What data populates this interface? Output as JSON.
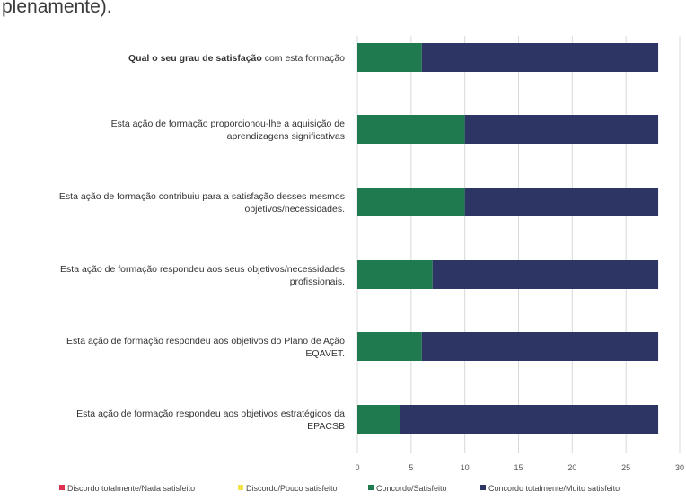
{
  "header": {
    "heading_fragment": "plenamente)."
  },
  "colors": {
    "discordo_totalmente": "#e0304f",
    "discordo": "#f2e34b",
    "concordo": "#1f7a4f",
    "concordo_totalmente": "#2c3564",
    "grid": "#d9d9d9"
  },
  "chart_data": {
    "type": "bar",
    "orientation": "horizontal",
    "stacked": true,
    "categories": [
      [
        "Qual o seu grau de satisfação com esta formação"
      ],
      [
        "Esta ação de formação proporcionou-lhe a aquisição de",
        "aprendizagens significativas"
      ],
      [
        "Esta ação de formação contribuiu para a satisfação desses mesmos",
        "objetivos/necessidades."
      ],
      [
        "Esta ação de formação respondeu aos seus objetivos/necessidades",
        "profissionais."
      ],
      [
        "Esta ação de formação respondeu aos objetivos do Plano de Ação",
        "EQAVET."
      ],
      [
        "Esta ação de formação respondeu aos objetivos estratégicos da",
        "EPACSB"
      ]
    ],
    "category_bold_segments": [
      {
        "row": 0,
        "bold": "Qual o seu grau de satisfação",
        "normal": " com esta formação"
      }
    ],
    "series": [
      {
        "name": "Discordo totalmente/Nada satisfeito",
        "color_key": "discordo_totalmente",
        "values": [
          0,
          0,
          0,
          0,
          0,
          0
        ]
      },
      {
        "name": "Discordo/Pouco satisfeito",
        "color_key": "discordo",
        "values": [
          0,
          0,
          0,
          0,
          0,
          0
        ]
      },
      {
        "name": "Concordo/Satisfeito",
        "color_key": "concordo",
        "values": [
          6,
          10,
          10,
          7,
          6,
          4
        ]
      },
      {
        "name": "Concordo totalmente/Muito satisfeito",
        "color_key": "concordo_totalmente",
        "values": [
          22,
          18,
          18,
          21,
          22,
          24
        ]
      }
    ],
    "xlim": [
      0,
      30
    ],
    "xticks": [
      0,
      5,
      10,
      15,
      20,
      25,
      30
    ],
    "grid": true,
    "legend_position": "bottom"
  }
}
